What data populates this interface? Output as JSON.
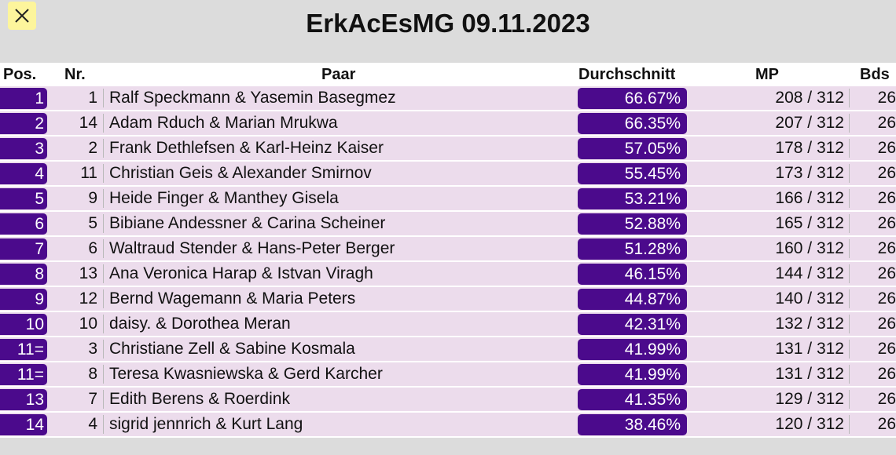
{
  "title": "ErkAcEsMG 09.11.2023",
  "close_icon": "close-icon",
  "colors": {
    "accent": "#4b0a8c",
    "row_bg": "#ecdcec",
    "close_bg": "#fdf59c",
    "page_bg": "#dcdcdc"
  },
  "table": {
    "headers": {
      "pos": "Pos.",
      "nr": "Nr.",
      "pair": "Paar",
      "avg": "Durchschnitt",
      "mp": "MP",
      "bds": "Bds"
    },
    "rows": [
      {
        "pos": "1",
        "nr": "1",
        "pair": "Ralf Speckmann & Yasemin Basegmez",
        "avg": "66.67%",
        "mp": "208 / 312",
        "bds": "26"
      },
      {
        "pos": "2",
        "nr": "14",
        "pair": "Adam Rduch & Marian Mrukwa",
        "avg": "66.35%",
        "mp": "207 / 312",
        "bds": "26"
      },
      {
        "pos": "3",
        "nr": "2",
        "pair": "Frank Dethlefsen & Karl-Heinz Kaiser",
        "avg": "57.05%",
        "mp": "178 / 312",
        "bds": "26"
      },
      {
        "pos": "4",
        "nr": "11",
        "pair": "Christian Geis & Alexander Smirnov",
        "avg": "55.45%",
        "mp": "173 / 312",
        "bds": "26"
      },
      {
        "pos": "5",
        "nr": "9",
        "pair": "Heide Finger & Manthey Gisela",
        "avg": "53.21%",
        "mp": "166 / 312",
        "bds": "26"
      },
      {
        "pos": "6",
        "nr": "5",
        "pair": "Bibiane Andessner & Carina Scheiner",
        "avg": "52.88%",
        "mp": "165 / 312",
        "bds": "26"
      },
      {
        "pos": "7",
        "nr": "6",
        "pair": "Waltraud Stender & Hans-Peter Berger",
        "avg": "51.28%",
        "mp": "160 / 312",
        "bds": "26"
      },
      {
        "pos": "8",
        "nr": "13",
        "pair": "Ana Veronica Harap & Istvan Viragh",
        "avg": "46.15%",
        "mp": "144 / 312",
        "bds": "26"
      },
      {
        "pos": "9",
        "nr": "12",
        "pair": "Bernd Wagemann & Maria Peters",
        "avg": "44.87%",
        "mp": "140 / 312",
        "bds": "26"
      },
      {
        "pos": "10",
        "nr": "10",
        "pair": "daisy. & Dorothea Meran",
        "avg": "42.31%",
        "mp": "132 / 312",
        "bds": "26"
      },
      {
        "pos": "11=",
        "nr": "3",
        "pair": "Christiane Zell & Sabine Kosmala",
        "avg": "41.99%",
        "mp": "131 / 312",
        "bds": "26"
      },
      {
        "pos": "11=",
        "nr": "8",
        "pair": "Teresa Kwasniewska & Gerd Karcher",
        "avg": "41.99%",
        "mp": "131 / 312",
        "bds": "26"
      },
      {
        "pos": "13",
        "nr": "7",
        "pair": "Edith Berens & Roerdink",
        "avg": "41.35%",
        "mp": "129 / 312",
        "bds": "26"
      },
      {
        "pos": "14",
        "nr": "4",
        "pair": "sigrid jennrich & Kurt Lang",
        "avg": "38.46%",
        "mp": "120 / 312",
        "bds": "26"
      }
    ]
  }
}
